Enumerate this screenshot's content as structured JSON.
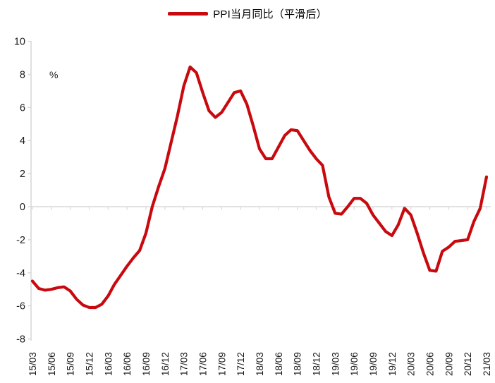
{
  "legend": {
    "label": "PPI当月同比（平滑后）"
  },
  "chart_data": {
    "type": "line",
    "title": "",
    "ylabel": "%",
    "xlabel": "",
    "ylim": [
      -8,
      10
    ],
    "ytick_step": 2,
    "grid": "zero-baseline-only",
    "legend_position": "top-center",
    "axis_color": "#d9d9d9",
    "text_color": "#1a1a1a",
    "x_tick_labels": [
      "15/03",
      "15/06",
      "15/09",
      "15/12",
      "16/03",
      "16/06",
      "16/09",
      "16/12",
      "17/03",
      "17/06",
      "17/09",
      "17/12",
      "18/03",
      "18/06",
      "18/09",
      "18/12",
      "19/03",
      "19/06",
      "19/09",
      "19/12",
      "20/03",
      "20/06",
      "20/09",
      "20/12",
      "21/03"
    ],
    "x": [
      "15/03",
      "15/04",
      "15/05",
      "15/06",
      "15/07",
      "15/08",
      "15/09",
      "15/10",
      "15/11",
      "15/12",
      "16/01",
      "16/02",
      "16/03",
      "16/04",
      "16/05",
      "16/06",
      "16/07",
      "16/08",
      "16/09",
      "16/10",
      "16/11",
      "16/12",
      "17/01",
      "17/02",
      "17/03",
      "17/04",
      "17/05",
      "17/06",
      "17/07",
      "17/08",
      "17/09",
      "17/10",
      "17/11",
      "17/12",
      "18/01",
      "18/02",
      "18/03",
      "18/04",
      "18/05",
      "18/06",
      "18/07",
      "18/08",
      "18/09",
      "18/10",
      "18/11",
      "18/12",
      "19/01",
      "19/02",
      "19/03",
      "19/04",
      "19/05",
      "19/06",
      "19/07",
      "19/08",
      "19/09",
      "19/10",
      "19/11",
      "19/12",
      "20/01",
      "20/02",
      "20/03",
      "20/04",
      "20/05",
      "20/06",
      "20/07",
      "20/08",
      "20/09",
      "20/10",
      "20/11",
      "20/12",
      "21/01",
      "21/02",
      "21/03"
    ],
    "series": [
      {
        "name": "PPI当月同比（平滑后）",
        "color": "#c80a0f",
        "values": [
          -4.5,
          -4.95,
          -5.05,
          -5.0,
          -4.9,
          -4.85,
          -5.1,
          -5.6,
          -5.95,
          -6.1,
          -6.1,
          -5.9,
          -5.4,
          -4.7,
          -4.15,
          -3.6,
          -3.1,
          -2.65,
          -1.6,
          0.0,
          1.2,
          2.3,
          3.9,
          5.5,
          7.3,
          8.45,
          8.1,
          6.9,
          5.8,
          5.4,
          5.7,
          6.3,
          6.9,
          7.0,
          6.2,
          4.9,
          3.5,
          2.9,
          2.9,
          3.6,
          4.3,
          4.65,
          4.6,
          4.0,
          3.4,
          2.9,
          2.5,
          0.6,
          -0.4,
          -0.45,
          0.0,
          0.5,
          0.5,
          0.2,
          -0.5,
          -1.0,
          -1.5,
          -1.75,
          -1.1,
          -0.1,
          -0.5,
          -1.6,
          -2.8,
          -3.85,
          -3.9,
          -2.7,
          -2.45,
          -2.1,
          -2.05,
          -2.0,
          -0.9,
          -0.1,
          1.8
        ]
      }
    ]
  }
}
